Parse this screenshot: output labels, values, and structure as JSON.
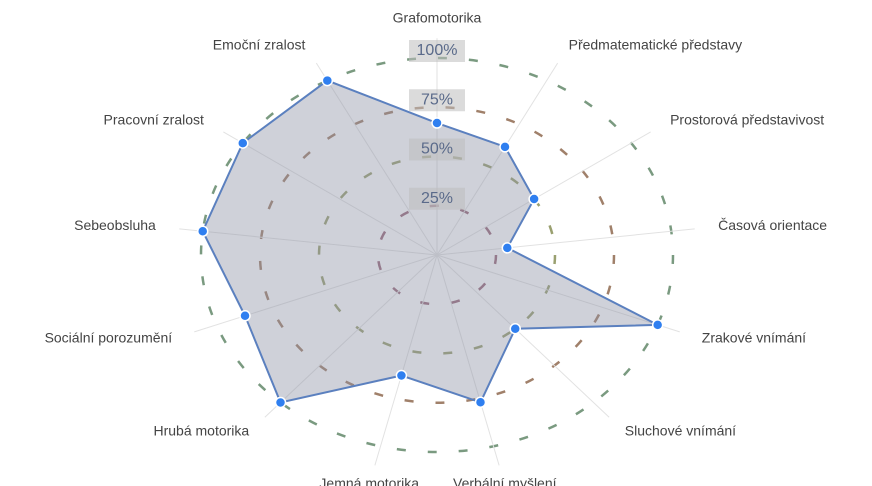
{
  "chart_data": {
    "type": "radar",
    "categories": [
      "Grafomotorika",
      "Předmatematické představy",
      "Prostorová představivost",
      "Časová orientace",
      "Zrakové vnímání",
      "Sluchové vnímání",
      "Verbální myšlení",
      "Jemná motorika",
      "Hrubá motorika",
      "Sociální porozumění",
      "Sebeobsluha",
      "Pracovní zralost",
      "Emoční zralost"
    ],
    "values": [
      67,
      62,
      50,
      30,
      100,
      50,
      77,
      63,
      100,
      87,
      100,
      100,
      100
    ],
    "color": "#5b80bf",
    "point_color": "#2f7ff0",
    "fill": "rgba(140,146,165,0.42)",
    "rlim": [
      0,
      100
    ],
    "rticks": [
      {
        "value": 25,
        "label": "25%"
      },
      {
        "value": 50,
        "label": "50%"
      },
      {
        "value": 75,
        "label": "75%"
      },
      {
        "value": 100,
        "label": "100%"
      }
    ],
    "grid_colors": [
      "#9a6a7a",
      "#9aa070",
      "#a0806a",
      "#7a9a80"
    ]
  }
}
